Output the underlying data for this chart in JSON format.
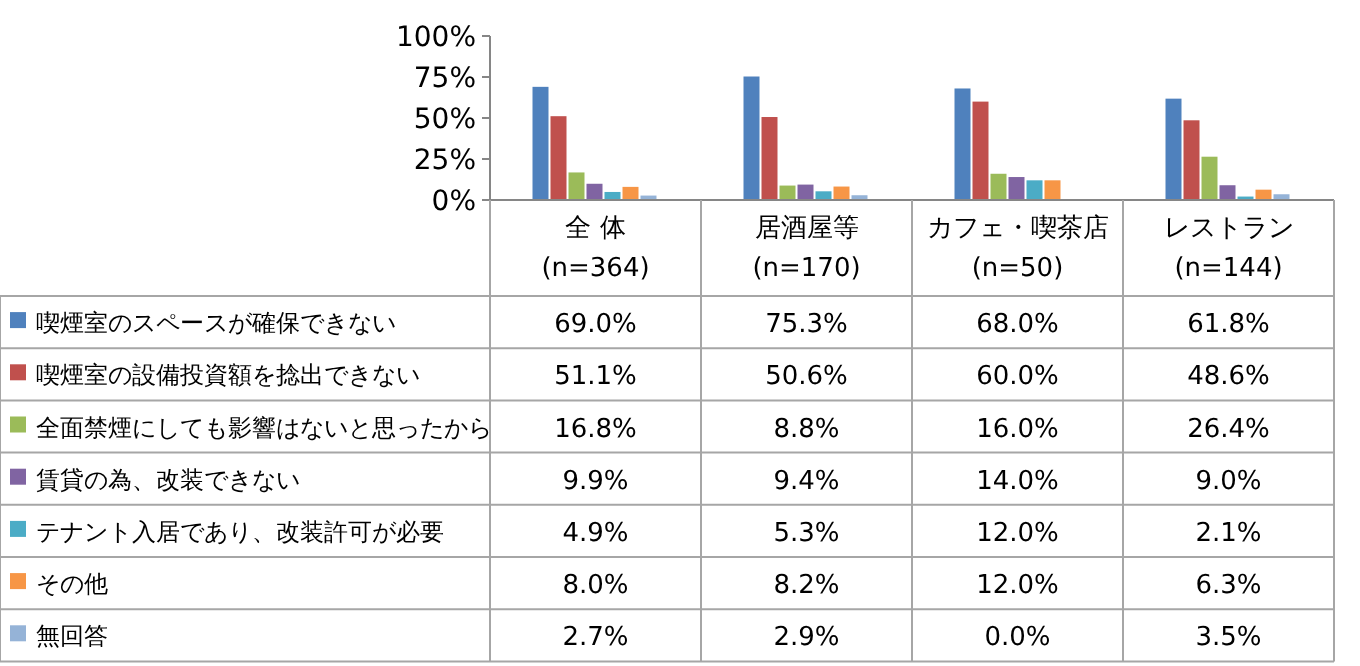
{
  "chart_data": {
    "type": "bar",
    "categories": [
      "全 体\n(n=364)",
      "居酒屋等\n(n=170)",
      "カフェ・喫茶店\n(n=50)",
      "レストラン\n(n=144)"
    ],
    "ylim": [
      0,
      100
    ],
    "yticks": [
      {
        "value": 0,
        "label": "0%"
      },
      {
        "value": 25,
        "label": "25%"
      },
      {
        "value": 50,
        "label": "50%"
      },
      {
        "value": 75,
        "label": "75%"
      },
      {
        "value": 100,
        "label": "100%"
      }
    ],
    "legend": "left",
    "grid": false,
    "series": [
      {
        "name": "喫煙室のスペースが確保できない",
        "color": "#4f81bd",
        "values": [
          69.0,
          75.3,
          68.0,
          61.8
        ],
        "value_labels": [
          "69.0%",
          "75.3%",
          "68.0%",
          "61.8%"
        ]
      },
      {
        "name": "喫煙室の設備投資額を捻出できない",
        "color": "#c0504d",
        "values": [
          51.1,
          50.6,
          60.0,
          48.6
        ],
        "value_labels": [
          "51.1%",
          "50.6%",
          "60.0%",
          "48.6%"
        ]
      },
      {
        "name": "全面禁煙にしても影響はないと思ったから",
        "color": "#9bbb59",
        "values": [
          16.8,
          8.8,
          16.0,
          26.4
        ],
        "value_labels": [
          "16.8%",
          "8.8%",
          "16.0%",
          "26.4%"
        ]
      },
      {
        "name": "賃貸の為、改装できない",
        "color": "#8064a2",
        "values": [
          9.9,
          9.4,
          14.0,
          9.0
        ],
        "value_labels": [
          "9.9%",
          "9.4%",
          "14.0%",
          "9.0%"
        ]
      },
      {
        "name": "テナント入居であり、改装許可が必要",
        "color": "#4bacc6",
        "values": [
          4.9,
          5.3,
          12.0,
          2.1
        ],
        "value_labels": [
          "4.9%",
          "5.3%",
          "12.0%",
          "2.1%"
        ]
      },
      {
        "name": "その他",
        "color": "#f79646",
        "values": [
          8.0,
          8.2,
          12.0,
          6.3
        ],
        "value_labels": [
          "8.0%",
          "8.2%",
          "12.0%",
          "6.3%"
        ]
      },
      {
        "name": "無回答",
        "color": "#95b3d7",
        "values": [
          2.7,
          2.9,
          0.0,
          3.5
        ],
        "value_labels": [
          "2.7%",
          "2.9%",
          "0.0%",
          "3.5%"
        ]
      }
    ]
  }
}
